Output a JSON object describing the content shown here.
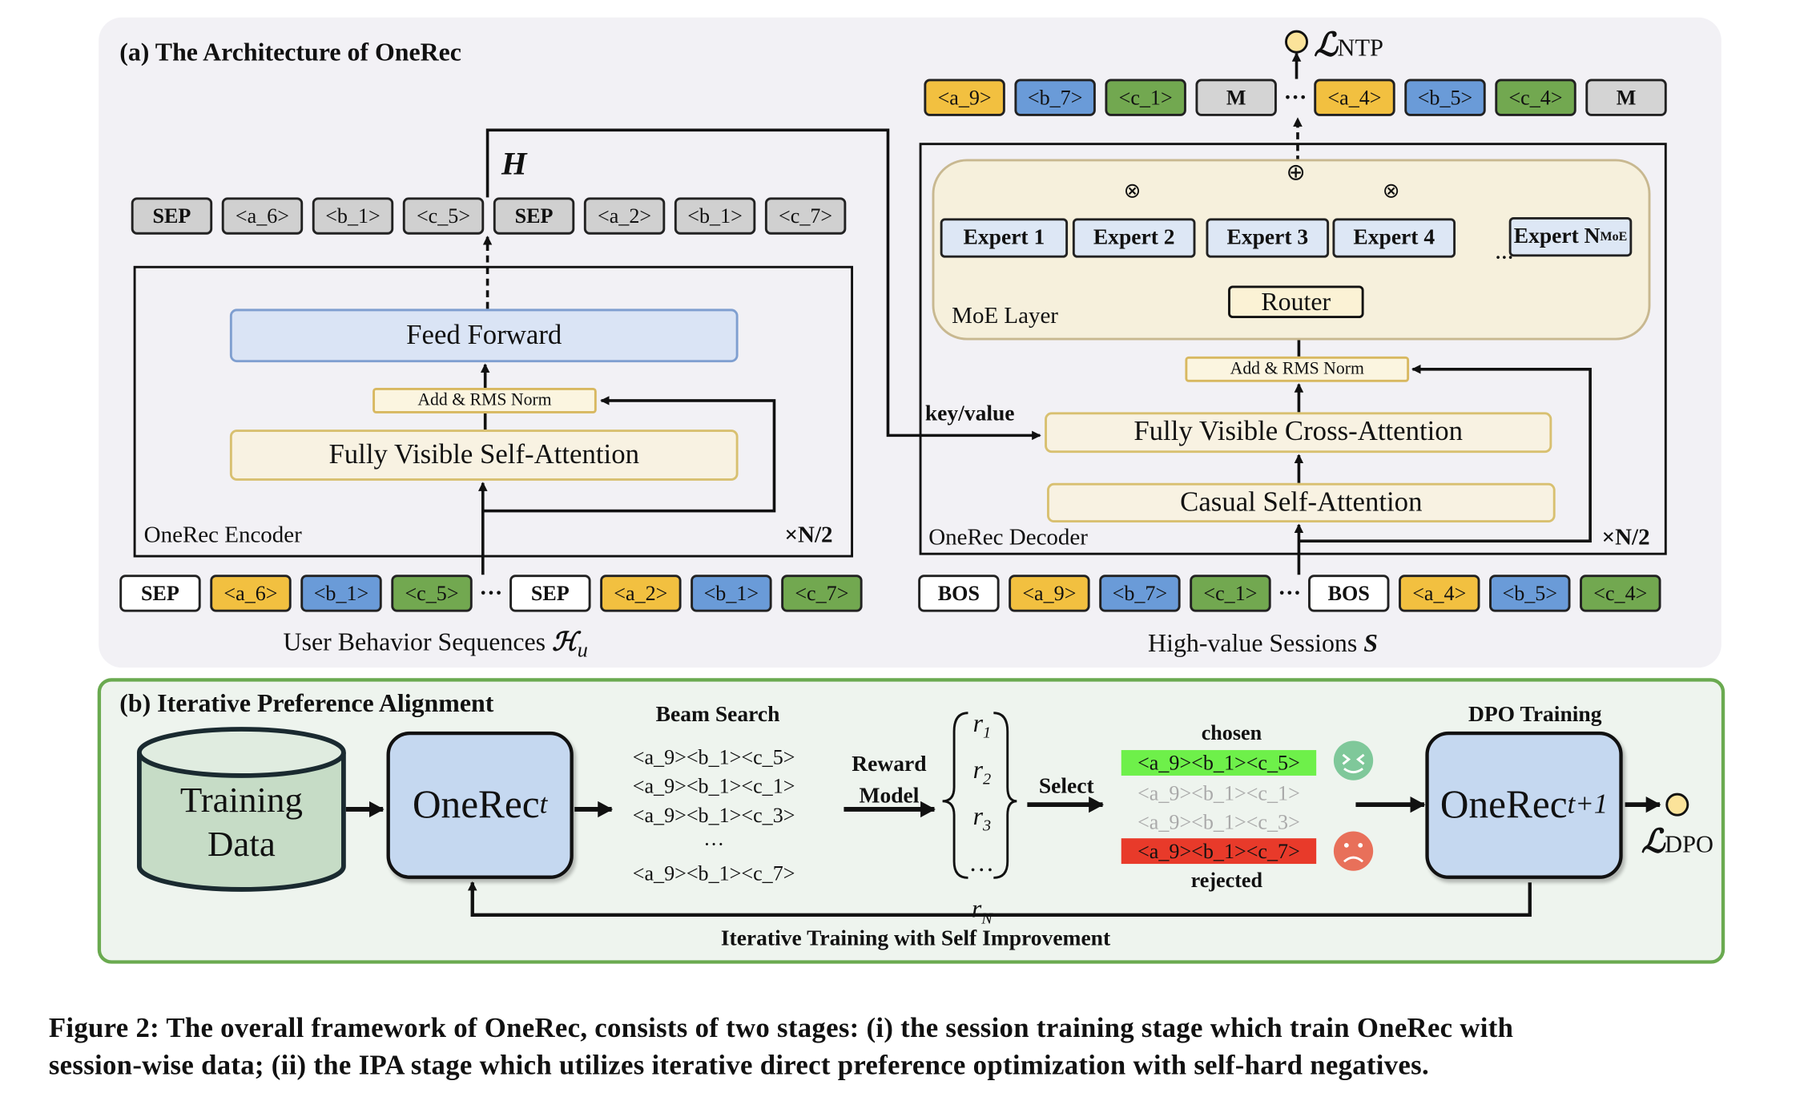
{
  "colors": {
    "sep": "#ffffff",
    "enc_gray": "#d0d0d0",
    "a": "#f2c040",
    "b": "#6a9bd8",
    "c": "#72a850",
    "m": "#d4d4d4",
    "chosen": "#6ef04a",
    "rejected": "#e83a2a",
    "happy": "#7fc89a",
    "sad": "#e8705a",
    "panel_b_border": "#6aaa50"
  },
  "panel_a": {
    "title": "(a) The Architecture of OneRec",
    "h_label": "H",
    "encoder_output_tokens": [
      {
        "t": "SEP",
        "k": "enc_gray",
        "bold": true
      },
      {
        "t": "<a_6>",
        "k": "enc_gray"
      },
      {
        "t": "<b_1>",
        "k": "enc_gray"
      },
      {
        "t": "<c_5>",
        "k": "enc_gray"
      },
      {
        "t": "SEP",
        "k": "enc_gray",
        "bold": true
      },
      {
        "t": "<a_2>",
        "k": "enc_gray"
      },
      {
        "t": "<b_1>",
        "k": "enc_gray"
      },
      {
        "t": "<c_7>",
        "k": "enc_gray"
      }
    ],
    "encoder": {
      "feed_forward": "Feed Forward",
      "norm": "Add & RMS Norm",
      "attention": "Fully Visible Self-Attention",
      "name": "OneRec Encoder",
      "repeat": "×N/2"
    },
    "encoder_input_tokens": [
      {
        "t": "SEP",
        "k": "sep",
        "bold": true
      },
      {
        "t": "<a_6>",
        "k": "a"
      },
      {
        "t": "<b_1>",
        "k": "b"
      },
      {
        "t": "<c_5>",
        "k": "c"
      },
      {
        "t": "···",
        "k": "dots"
      },
      {
        "t": "SEP",
        "k": "sep",
        "bold": true
      },
      {
        "t": "<a_2>",
        "k": "a"
      },
      {
        "t": "<b_1>",
        "k": "b"
      },
      {
        "t": "<c_7>",
        "k": "c"
      }
    ],
    "encoder_input_label": "User Behavior Sequences",
    "encoder_input_symbol": "ℋ",
    "encoder_input_sub": "u",
    "key_value": "key/value",
    "loss_symbol": "ℒ",
    "loss_sub": "NTP",
    "decoder_output_tokens": [
      {
        "t": "<a_9>",
        "k": "a"
      },
      {
        "t": "<b_7>",
        "k": "b"
      },
      {
        "t": "<c_1>",
        "k": "c"
      },
      {
        "t": "M",
        "k": "m",
        "bold": true
      },
      {
        "t": "···",
        "k": "dots"
      },
      {
        "t": "<a_4>",
        "k": "a"
      },
      {
        "t": "<b_5>",
        "k": "b"
      },
      {
        "t": "<c_4>",
        "k": "c"
      },
      {
        "t": "M",
        "k": "m",
        "bold": true
      }
    ],
    "decoder": {
      "moe_label": "MoE Layer",
      "router": "Router",
      "experts": [
        "Expert 1",
        "Expert 2",
        "Expert 3",
        "Expert 4"
      ],
      "expert_n": "Expert N",
      "expert_n_sub": "MoE",
      "norm": "Add & RMS Norm",
      "cross_attention": "Fully Visible Cross-Attention",
      "self_attention": "Casual Self-Attention",
      "name": "OneRec Decoder",
      "repeat": "×N/2",
      "plus": "⊕",
      "times": "⊗",
      "ellipsis": "···"
    },
    "decoder_input_tokens": [
      {
        "t": "BOS",
        "k": "sep",
        "bold": true
      },
      {
        "t": "<a_9>",
        "k": "a"
      },
      {
        "t": "<b_7>",
        "k": "b"
      },
      {
        "t": "<c_1>",
        "k": "c"
      },
      {
        "t": "···",
        "k": "dots"
      },
      {
        "t": "BOS",
        "k": "sep",
        "bold": true
      },
      {
        "t": "<a_4>",
        "k": "a"
      },
      {
        "t": "<b_5>",
        "k": "b"
      },
      {
        "t": "<c_4>",
        "k": "c"
      }
    ],
    "decoder_input_label": "High-value Sessions",
    "decoder_input_symbol": "S"
  },
  "panel_b": {
    "title": "(b) Iterative Preference Alignment",
    "training_data": [
      "Training",
      "Data"
    ],
    "model_t": "OneRec",
    "model_t_sub": "t",
    "beam_search_title": "Beam Search",
    "beam_outputs": [
      "<a_9><b_1><c_5>",
      "<a_9><b_1><c_1>",
      "<a_9><b_1><c_3>",
      "···",
      "<a_9><b_1><c_7>"
    ],
    "reward_model": [
      "Reward",
      "Model"
    ],
    "rewards": [
      {
        "r": "r",
        "s": "1"
      },
      {
        "r": "r",
        "s": "2"
      },
      {
        "r": "r",
        "s": "3"
      },
      {
        "r": "…",
        "s": ""
      },
      {
        "r": "r",
        "s": "N"
      }
    ],
    "select": "Select",
    "chosen_label": "chosen",
    "candidates": [
      "<a_9><b_1><c_5>",
      "<a_9><b_1><c_1>",
      "<a_9><b_1><c_3>",
      "<a_9><b_1><c_7>"
    ],
    "rejected_label": "rejected",
    "dpo_title": "DPO Training",
    "model_next": "OneRec",
    "model_next_sub": "t+1",
    "loss_symbol": "ℒ",
    "loss_sub": "DPO",
    "loop_label": "Iterative Training with Self Improvement"
  },
  "caption": [
    "Figure 2: The overall framework of OneRec, consists of two stages: (i) the session training stage which train OneRec with",
    "session-wise data; (ii) the IPA stage which utilizes iterative direct preference optimization with self-hard negatives."
  ]
}
